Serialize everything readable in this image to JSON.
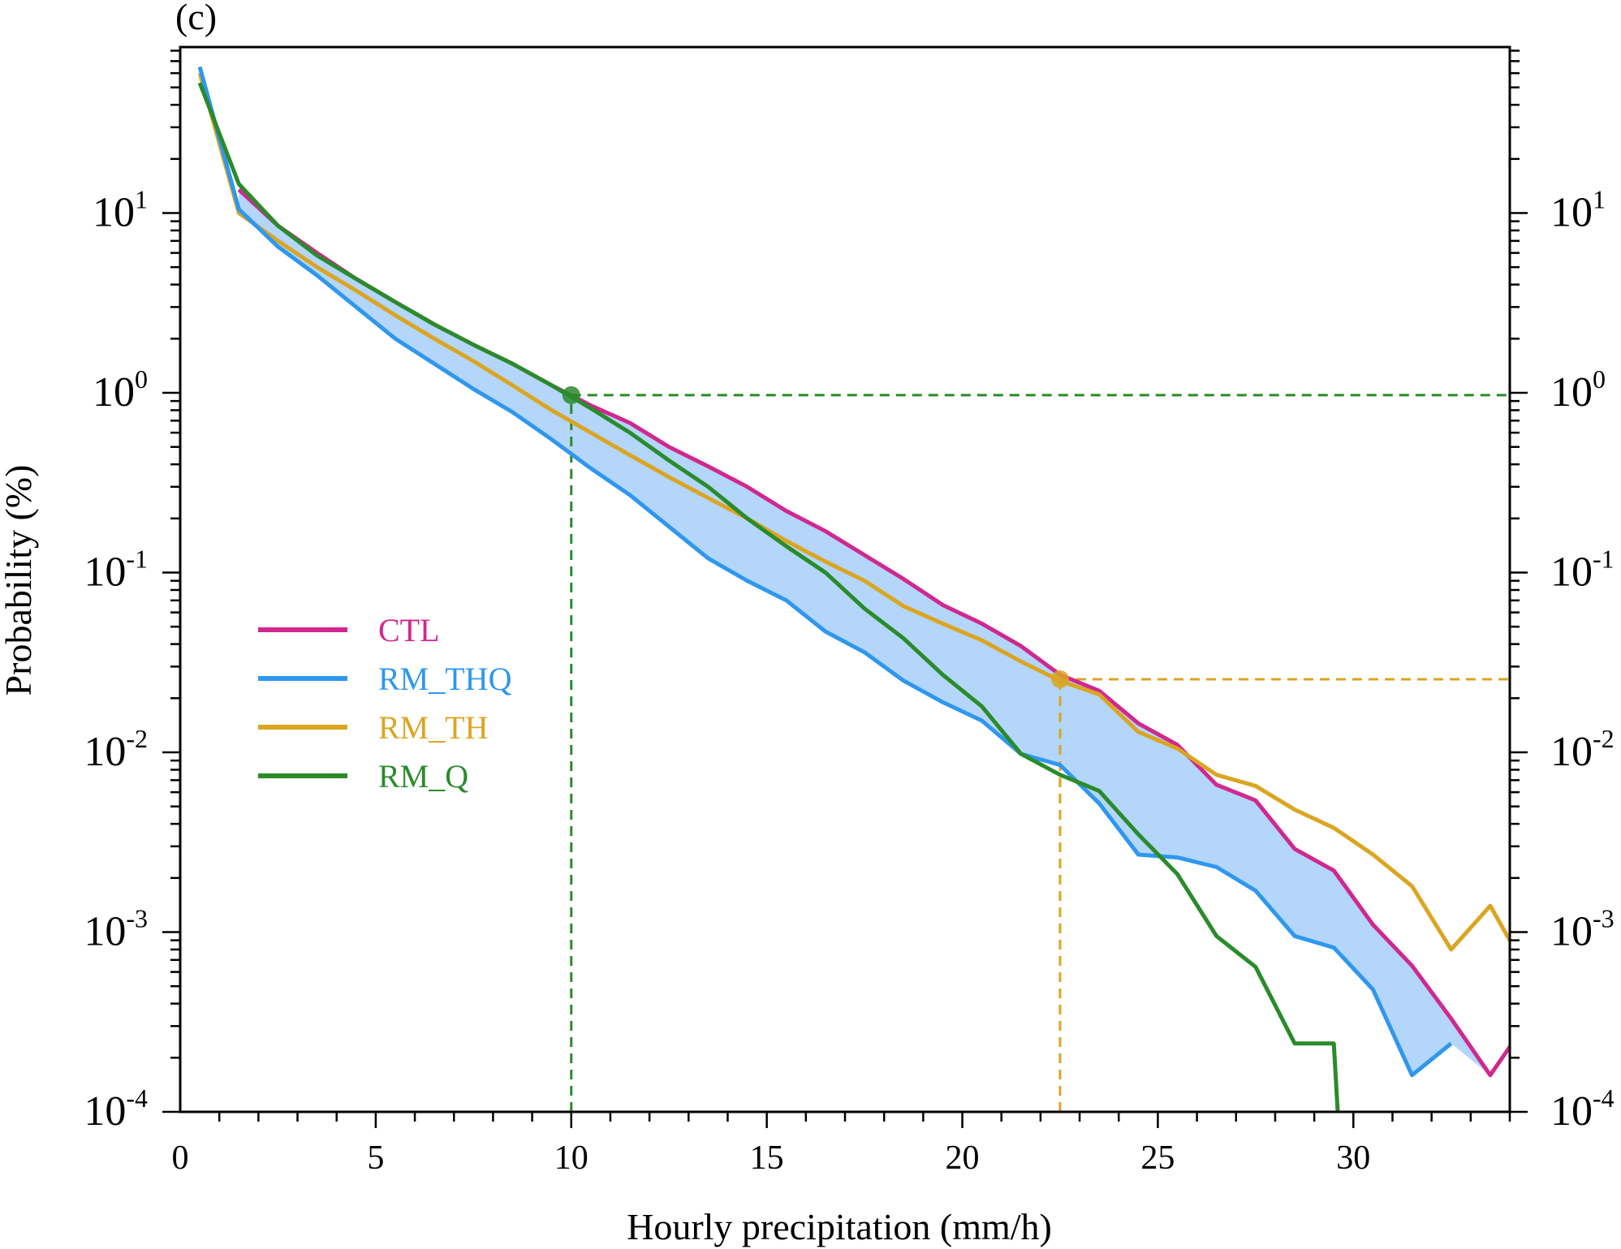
{
  "panel_label": "(c)",
  "chart_data": {
    "type": "line",
    "title": "",
    "xlabel": "Hourly precipitation (mm/h)",
    "ylabel": "Probability (%)",
    "xlim": [
      0,
      34
    ],
    "ylim": [
      0.0001,
      80
    ],
    "yscale": "log",
    "x_ticks": [
      0,
      5,
      10,
      15,
      20,
      25,
      30
    ],
    "x_tick_labels": [
      "0",
      "5",
      "10",
      "15",
      "20",
      "25",
      "30"
    ],
    "y_ticks": [
      0.0001,
      0.001,
      0.01,
      0.1,
      1,
      10
    ],
    "y_tick_labels": [
      {
        "base": "10",
        "exp": "-4"
      },
      {
        "base": "10",
        "exp": "-3"
      },
      {
        "base": "10",
        "exp": "-2"
      },
      {
        "base": "10",
        "exp": "-1"
      },
      {
        "base": "10",
        "exp": "0"
      },
      {
        "base": "10",
        "exp": "1"
      }
    ],
    "legend": {
      "placement": "center-left",
      "entries": [
        {
          "label": "CTL",
          "color": "#d0288f"
        },
        {
          "label": "RM_THQ",
          "color": "#2f97ee"
        },
        {
          "label": "RM_TH",
          "color": "#dba521"
        },
        {
          "label": "RM_Q",
          "color": "#2a8b2a"
        }
      ]
    },
    "fill_between": {
      "upper": "CTL",
      "lower": "RM_THQ",
      "color": "#b3d6fa"
    },
    "series": [
      {
        "name": "CTL",
        "color": "#d0288f",
        "x": [
          1.5,
          2.5,
          3.5,
          4.5,
          5.5,
          6.5,
          7.5,
          8.5,
          9.5,
          10.5,
          11.5,
          12.5,
          13.5,
          14.5,
          15.5,
          16.5,
          17.5,
          18.5,
          19.5,
          20.5,
          21.5,
          22.5,
          23.5,
          24.5,
          25.5,
          26.5,
          27.5,
          28.5,
          29.5,
          30.5,
          31.5,
          32.5,
          33.5,
          34.0
        ],
        "y": [
          13.5,
          8.5,
          6.0,
          4.3,
          3.2,
          2.4,
          1.85,
          1.45,
          1.1,
          0.85,
          0.68,
          0.5,
          0.39,
          0.3,
          0.22,
          0.17,
          0.125,
          0.092,
          0.066,
          0.052,
          0.039,
          0.027,
          0.022,
          0.0145,
          0.011,
          0.0066,
          0.0054,
          0.0029,
          0.0022,
          0.0011,
          0.00065,
          0.00033,
          0.00016,
          0.00023
        ]
      },
      {
        "name": "RM_THQ",
        "color": "#2f97ee",
        "x": [
          0.5,
          1.5,
          2.5,
          3.5,
          4.5,
          5.5,
          6.5,
          7.5,
          8.5,
          9.5,
          10.5,
          11.5,
          12.5,
          13.5,
          14.5,
          15.5,
          16.5,
          17.5,
          18.5,
          19.5,
          20.5,
          21.5,
          22.5,
          23.5,
          24.5,
          25.5,
          26.5,
          27.5,
          28.5,
          29.5,
          30.5,
          31.5,
          32.5,
          33.5
        ],
        "y": [
          65,
          10.5,
          6.5,
          4.5,
          3.0,
          2.0,
          1.45,
          1.05,
          0.78,
          0.55,
          0.38,
          0.27,
          0.18,
          0.12,
          0.09,
          0.07,
          0.047,
          0.036,
          0.025,
          0.019,
          0.015,
          0.0098,
          0.0085,
          0.0052,
          0.0027,
          0.0026,
          0.0023,
          0.0017,
          0.00095,
          0.00082,
          0.00048,
          0.00016,
          0.00024,
          null
        ]
      },
      {
        "name": "RM_TH",
        "color": "#dba521",
        "x": [
          0.5,
          1.5,
          2.5,
          3.5,
          4.5,
          5.5,
          6.5,
          7.5,
          8.5,
          9.5,
          10.5,
          11.5,
          12.5,
          13.5,
          14.5,
          15.5,
          16.5,
          17.5,
          18.5,
          19.5,
          20.5,
          21.5,
          22.5,
          23.5,
          24.5,
          25.5,
          26.5,
          27.5,
          28.5,
          29.5,
          30.5,
          31.5,
          32.5,
          33.5,
          34.0
        ],
        "y": [
          60,
          10.0,
          7.0,
          5.0,
          3.7,
          2.7,
          2.0,
          1.5,
          1.1,
          0.8,
          0.6,
          0.45,
          0.34,
          0.26,
          0.2,
          0.15,
          0.115,
          0.09,
          0.065,
          0.052,
          0.042,
          0.032,
          0.025,
          0.021,
          0.013,
          0.0105,
          0.0075,
          0.0065,
          0.0048,
          0.0038,
          0.0027,
          0.0018,
          0.0008,
          0.0014,
          0.0009
        ]
      },
      {
        "name": "RM_Q",
        "color": "#2a8b2a",
        "x": [
          0.5,
          1.5,
          2.5,
          3.5,
          4.5,
          5.5,
          6.5,
          7.5,
          8.5,
          9.5,
          10.5,
          11.5,
          12.5,
          13.5,
          14.5,
          15.5,
          16.5,
          17.5,
          18.5,
          19.5,
          20.5,
          21.5,
          22.5,
          23.5,
          24.5,
          25.5,
          26.5,
          27.5,
          28.5,
          29.5,
          29.6
        ],
        "y": [
          53,
          14.5,
          8.5,
          5.8,
          4.3,
          3.2,
          2.4,
          1.85,
          1.45,
          1.1,
          0.82,
          0.6,
          0.42,
          0.3,
          0.2,
          0.14,
          0.1,
          0.063,
          0.043,
          0.027,
          0.018,
          0.0098,
          0.0075,
          0.0061,
          0.0035,
          0.0021,
          0.00095,
          0.00064,
          0.00024,
          0.00024,
          0.0001
        ]
      }
    ],
    "markers": [
      {
        "series": "RM_Q",
        "x": 10,
        "y": 0.97,
        "color": "#2a8b2a"
      },
      {
        "series": "RM_TH",
        "x": 22.5,
        "y": 0.0255,
        "color": "#dba521"
      }
    ]
  }
}
